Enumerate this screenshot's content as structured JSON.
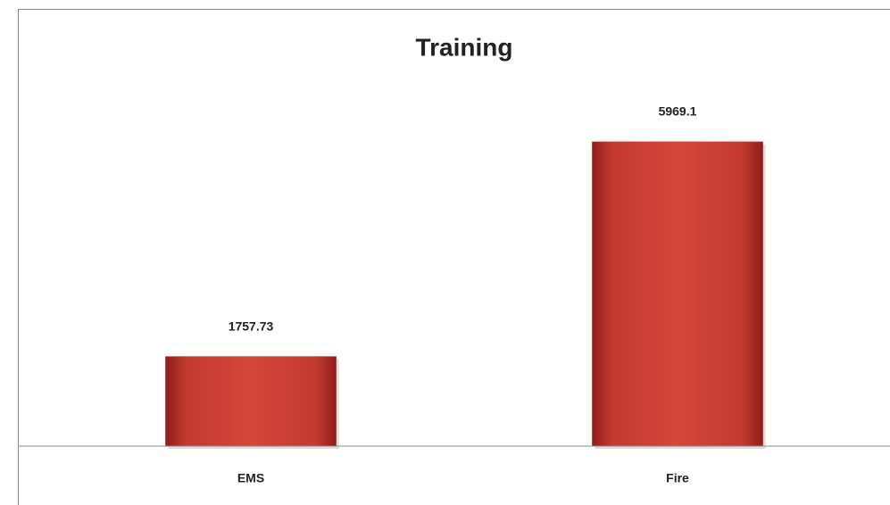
{
  "chart_data": {
    "type": "bar",
    "title": "Training",
    "categories": [
      "EMS",
      "Fire"
    ],
    "values": [
      1757.73,
      5969.1
    ],
    "color": "#c8362f",
    "ylim": [
      0,
      7000
    ]
  }
}
